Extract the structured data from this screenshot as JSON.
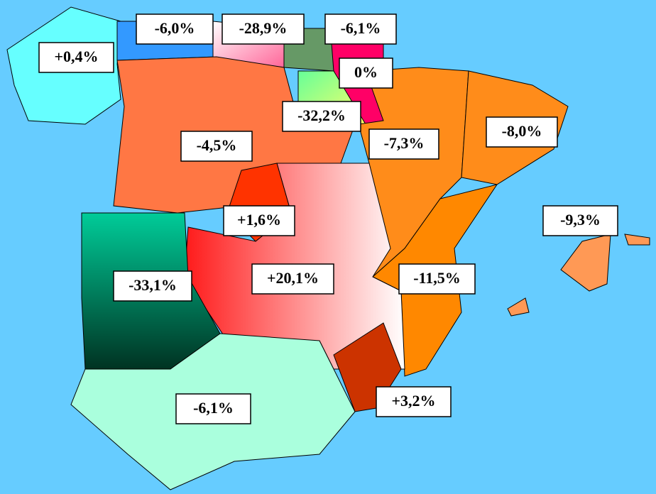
{
  "regions": [
    {
      "label": "+0,4%"
    },
    {
      "label": "-6,0%"
    },
    {
      "label": "-28,9%"
    },
    {
      "label": "-6,1%"
    },
    {
      "label": "0%"
    },
    {
      "label": "-32,2%"
    },
    {
      "label": "-4,5%"
    },
    {
      "label": "-7,3%"
    },
    {
      "label": "-8,0%"
    },
    {
      "label": "-9,3%"
    },
    {
      "label": "+1,6%"
    },
    {
      "label": "+20,1%"
    },
    {
      "label": "-11,5%"
    },
    {
      "label": "-33,1%"
    },
    {
      "label": "+3,2%"
    },
    {
      "label": "-6,1%"
    }
  ]
}
